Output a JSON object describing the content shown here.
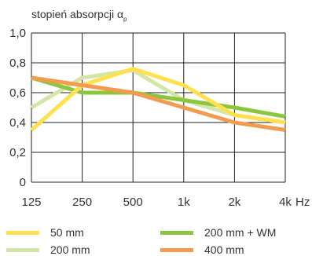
{
  "chart_data": {
    "type": "line",
    "title": "stopień absorpcji α",
    "title_subscript": "p",
    "xlabel": "Hz",
    "ylabel": "",
    "categories": [
      "125",
      "250",
      "500",
      "1k",
      "2k",
      "4k"
    ],
    "ylim": [
      0,
      1.0
    ],
    "y_ticks": [
      0,
      0.2,
      0.4,
      0.6,
      0.8,
      1.0
    ],
    "y_tick_labels": [
      "0",
      "0,2",
      "0,4",
      "0,6",
      "0,8",
      "1,0"
    ],
    "grid": true,
    "legend_position": "bottom",
    "series": [
      {
        "name": "200 mm",
        "color": "#d4e6a5",
        "values": [
          0.5,
          0.7,
          0.75,
          0.55,
          0.45,
          0.4
        ]
      },
      {
        "name": "200 mm + WM",
        "color": "#8cc63f",
        "values": [
          0.7,
          0.6,
          0.6,
          0.55,
          0.5,
          0.44
        ]
      },
      {
        "name": "50 mm",
        "color": "#ffe14d",
        "values": [
          0.35,
          0.65,
          0.76,
          0.65,
          0.45,
          0.4
        ]
      },
      {
        "name": "400 mm",
        "color": "#f39c4f",
        "values": [
          0.7,
          0.65,
          0.6,
          0.5,
          0.4,
          0.35
        ]
      }
    ]
  },
  "legend": {
    "items": [
      {
        "label": "50 mm",
        "color": "#ffe14d"
      },
      {
        "label": "200 mm + WM",
        "color": "#8cc63f"
      },
      {
        "label": "200 mm",
        "color": "#d4e6a5"
      },
      {
        "label": "400 mm",
        "color": "#f39c4f"
      }
    ]
  }
}
